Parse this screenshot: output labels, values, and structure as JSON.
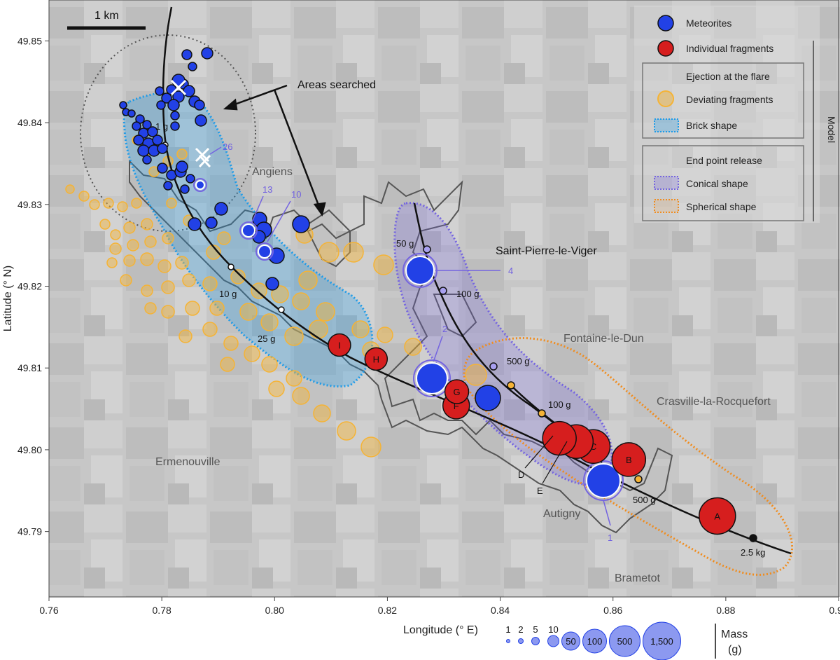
{
  "axes": {
    "xlabel": "Longitude (° E)",
    "ylabel": "Latitude (° N)",
    "xlim": [
      0.76,
      0.9
    ],
    "ylim": [
      49.782,
      49.855
    ],
    "xticks": [
      "0.76",
      "0.78",
      "0.80",
      "0.82",
      "0.84",
      "0.86",
      "0.88",
      "0.90"
    ],
    "yticks": [
      "49.79",
      "49.80",
      "49.81",
      "49.82",
      "49.83",
      "49.84",
      "49.85"
    ]
  },
  "scale_bar": {
    "label": "1 km"
  },
  "places": {
    "angiens": "Angiens",
    "saint_pierre": "Saint-Pierre-le-Viger",
    "fontaine": "Fontaine-le-Dun",
    "crasville": "Crasville-la-Rocquefort",
    "ermenouville": "Ermenouville",
    "autigny": "Autigny",
    "brametot": "Brametot"
  },
  "annotations": {
    "areas_searched": "Areas searched",
    "label_1g": "1 g",
    "label_10g": "10 g",
    "label_25g": "25 g",
    "label_50g": "50 g",
    "label_100g_a": "100 g",
    "label_500g_a": "500 g",
    "label_100g_b": "100 g",
    "label_500g_b": "500 g",
    "label_2_5kg": "2.5 kg",
    "label_D": "D",
    "label_E": "E",
    "num_26": "26",
    "num_13": "13",
    "num_10": "10",
    "num_4": "4",
    "num_2": "2",
    "num_1": "1"
  },
  "legend": {
    "meteorites": "Meteorites",
    "fragments": "Individual fragments",
    "flare_title": "Ejection at the flare",
    "deviating": "Deviating fragments",
    "brick": "Brick shape",
    "end_title": "End point release",
    "conical": "Conical shape",
    "spherical": "Spherical shape",
    "model": "Model"
  },
  "size_legend": {
    "values": [
      "1",
      "2",
      "5",
      "10",
      "50",
      "100",
      "500",
      "1,500"
    ],
    "label_line1": "Mass",
    "label_line2": "(g)"
  },
  "colors": {
    "meteorite": "#2241e6",
    "fragment": "#d61e1e",
    "deviating": "#f5b335",
    "brick": "#1e9be8",
    "conical": "#7464e0",
    "spherical": "#f08c1e",
    "background": "#c4c4c4"
  },
  "chart_data": {
    "type": "scatter",
    "fragments": [
      {
        "label": "A",
        "x": 0.8785,
        "y": 49.7919
      },
      {
        "label": "B",
        "x": 0.8628,
        "y": 49.7988
      },
      {
        "label": "C",
        "x": 0.8565,
        "y": 49.8004
      },
      {
        "label": "",
        "x": 0.8535,
        "y": 49.801
      },
      {
        "label": "",
        "x": 0.8505,
        "y": 49.8014
      },
      {
        "label": "F",
        "x": 0.8322,
        "y": 49.8054
      },
      {
        "label": "G",
        "x": 0.8323,
        "y": 49.8071
      },
      {
        "label": "H",
        "x": 0.818,
        "y": 49.8111
      },
      {
        "label": "I",
        "x": 0.8115,
        "y": 49.8128
      }
    ],
    "meteorites_large": [
      {
        "x": 0.8598,
        "y": 49.7964
      },
      {
        "x": 0.8378,
        "y": 49.8059
      },
      {
        "x": 0.829,
        "y": 49.8082
      },
      {
        "x": 0.8262,
        "y": 49.8211
      },
      {
        "x": 0.8044,
        "y": 49.8265
      },
      {
        "x": 0.7993,
        "y": 49.823
      },
      {
        "x": 0.7978,
        "y": 49.8257
      },
      {
        "x": 0.7895,
        "y": 49.8283
      },
      {
        "x": 0.7987,
        "y": 49.8195
      },
      {
        "x": 0.7882,
        "y": 49.8268
      },
      {
        "x": 0.7833,
        "y": 49.8266
      },
      {
        "x": 0.7901,
        "y": 49.8466
      }
    ]
  }
}
